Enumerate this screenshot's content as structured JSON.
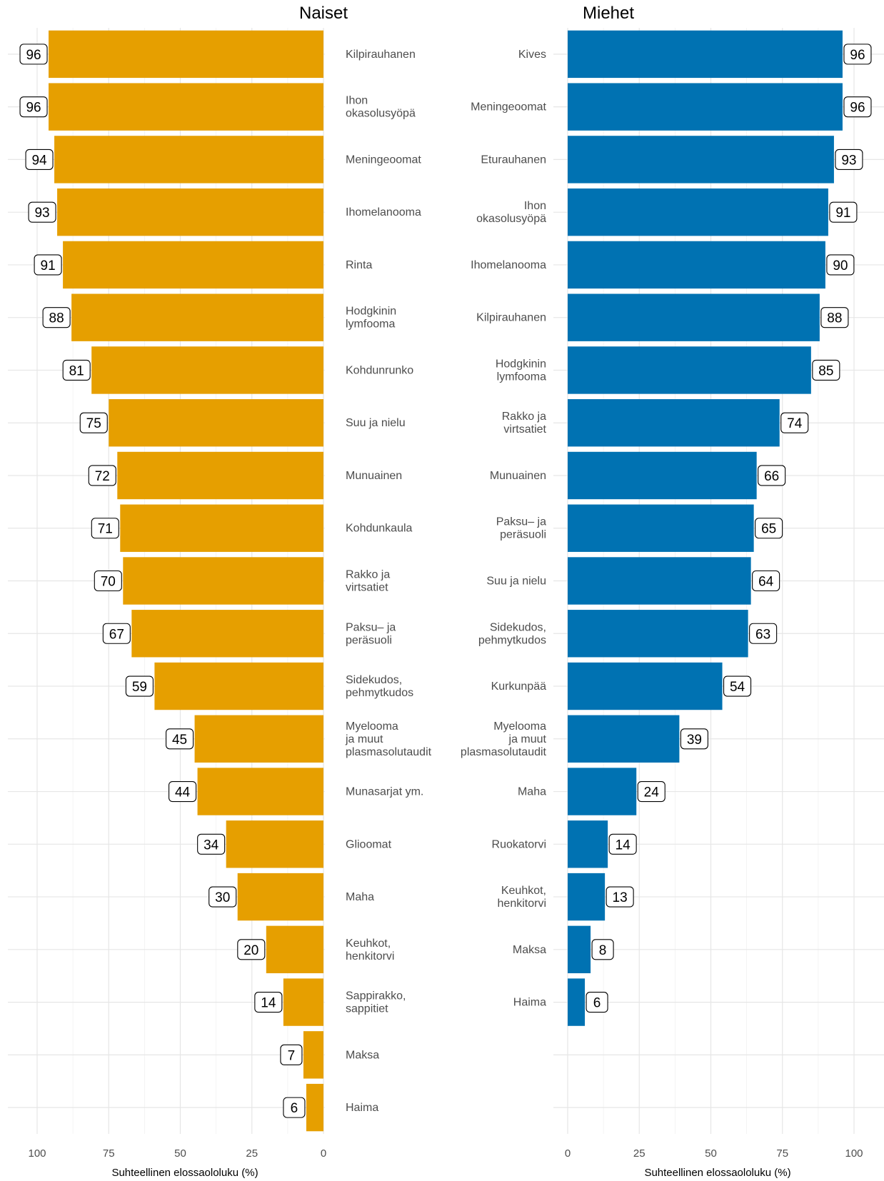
{
  "chart_data": [
    {
      "type": "bar",
      "orientation": "horizontal",
      "direction": "reversed",
      "title": "Naiset",
      "xlabel": "Suhteellinen elossaololuku (%)",
      "xlim": [
        0,
        100
      ],
      "xticks": [
        100,
        75,
        50,
        25,
        0
      ],
      "bar_color": "#E69F00",
      "categories": [
        "Kilpirauhanen",
        "Ihon okasolusyöpä",
        "Meningeoomat",
        "Ihomelanooma",
        "Rinta",
        "Hodgkinin lymfooma",
        "Kohdunrunko",
        "Suu ja nielu",
        "Munuainen",
        "Kohdunkaula",
        "Rakko ja virtsatiet",
        "Paksu– ja peräsuoli",
        "Sidekudos, pehmytkudos",
        "Myelooma ja muut plasmasolutaudit",
        "Munasarjat ym.",
        "Glioomat",
        "Maha",
        "Keuhkot, henkitorvi",
        "Sappirakko, sappitiet",
        "Maksa",
        "Haima"
      ],
      "category_lines": [
        [
          "Kilpirauhanen"
        ],
        [
          "Ihon",
          "okasolusyöpä"
        ],
        [
          "Meningeoomat"
        ],
        [
          "Ihomelanooma"
        ],
        [
          "Rinta"
        ],
        [
          "Hodgkinin",
          "lymfooma"
        ],
        [
          "Kohdunrunko"
        ],
        [
          "Suu ja nielu"
        ],
        [
          "Munuainen"
        ],
        [
          "Kohdunkaula"
        ],
        [
          "Rakko ja",
          "virtsatiet"
        ],
        [
          "Paksu– ja",
          "peräsuoli"
        ],
        [
          "Sidekudos,",
          "pehmytkudos"
        ],
        [
          "Myelooma",
          "ja muut",
          "plasmasolutaudit"
        ],
        [
          "Munasarjat ym."
        ],
        [
          "Glioomat"
        ],
        [
          "Maha"
        ],
        [
          "Keuhkot,",
          "henkitorvi"
        ],
        [
          "Sappirakko,",
          "sappitiet"
        ],
        [
          "Maksa"
        ],
        [
          "Haima"
        ]
      ],
      "values": [
        96,
        96,
        94,
        93,
        91,
        88,
        81,
        75,
        72,
        71,
        70,
        67,
        59,
        45,
        44,
        34,
        30,
        20,
        14,
        7,
        6
      ]
    },
    {
      "type": "bar",
      "orientation": "horizontal",
      "direction": "normal",
      "title": "Miehet",
      "xlabel": "Suhteellinen elossaololuku (%)",
      "xlim": [
        0,
        100
      ],
      "xticks": [
        0,
        25,
        50,
        75,
        100
      ],
      "bar_color": "#0072B2",
      "categories": [
        "Kives",
        "Meningeoomat",
        "Eturauhanen",
        "Ihon okasolusyöpä",
        "Ihomelanooma",
        "Kilpirauhanen",
        "Hodgkinin lymfooma",
        "Rakko ja virtsatiet",
        "Munuainen",
        "Paksu– ja peräsuoli",
        "Suu ja nielu",
        "Sidekudos, pehmytkudos",
        "Kurkunpää",
        "Myelooma ja muut plasmasolutaudit",
        "Maha",
        "Ruokatorvi",
        "Keuhkot, henkitorvi",
        "Maksa",
        "Haima"
      ],
      "category_lines": [
        [
          "Kives"
        ],
        [
          "Meningeoomat"
        ],
        [
          "Eturauhanen"
        ],
        [
          "Ihon",
          "okasolusyöpä"
        ],
        [
          "Ihomelanooma"
        ],
        [
          "Kilpirauhanen"
        ],
        [
          "Hodgkinin",
          "lymfooma"
        ],
        [
          "Rakko ja",
          "virtsatiet"
        ],
        [
          "Munuainen"
        ],
        [
          "Paksu– ja",
          "peräsuoli"
        ],
        [
          "Suu ja nielu"
        ],
        [
          "Sidekudos,",
          "pehmytkudos"
        ],
        [
          "Kurkunpää"
        ],
        [
          "Myelooma",
          "ja muut",
          "plasmasolutaudit"
        ],
        [
          "Maha"
        ],
        [
          "Ruokatorvi"
        ],
        [
          "Keuhkot,",
          "henkitorvi"
        ],
        [
          "Maksa"
        ],
        [
          "Haima"
        ]
      ],
      "values": [
        96,
        96,
        93,
        91,
        90,
        88,
        85,
        74,
        66,
        65,
        64,
        63,
        54,
        39,
        24,
        14,
        13,
        8,
        6
      ]
    }
  ]
}
